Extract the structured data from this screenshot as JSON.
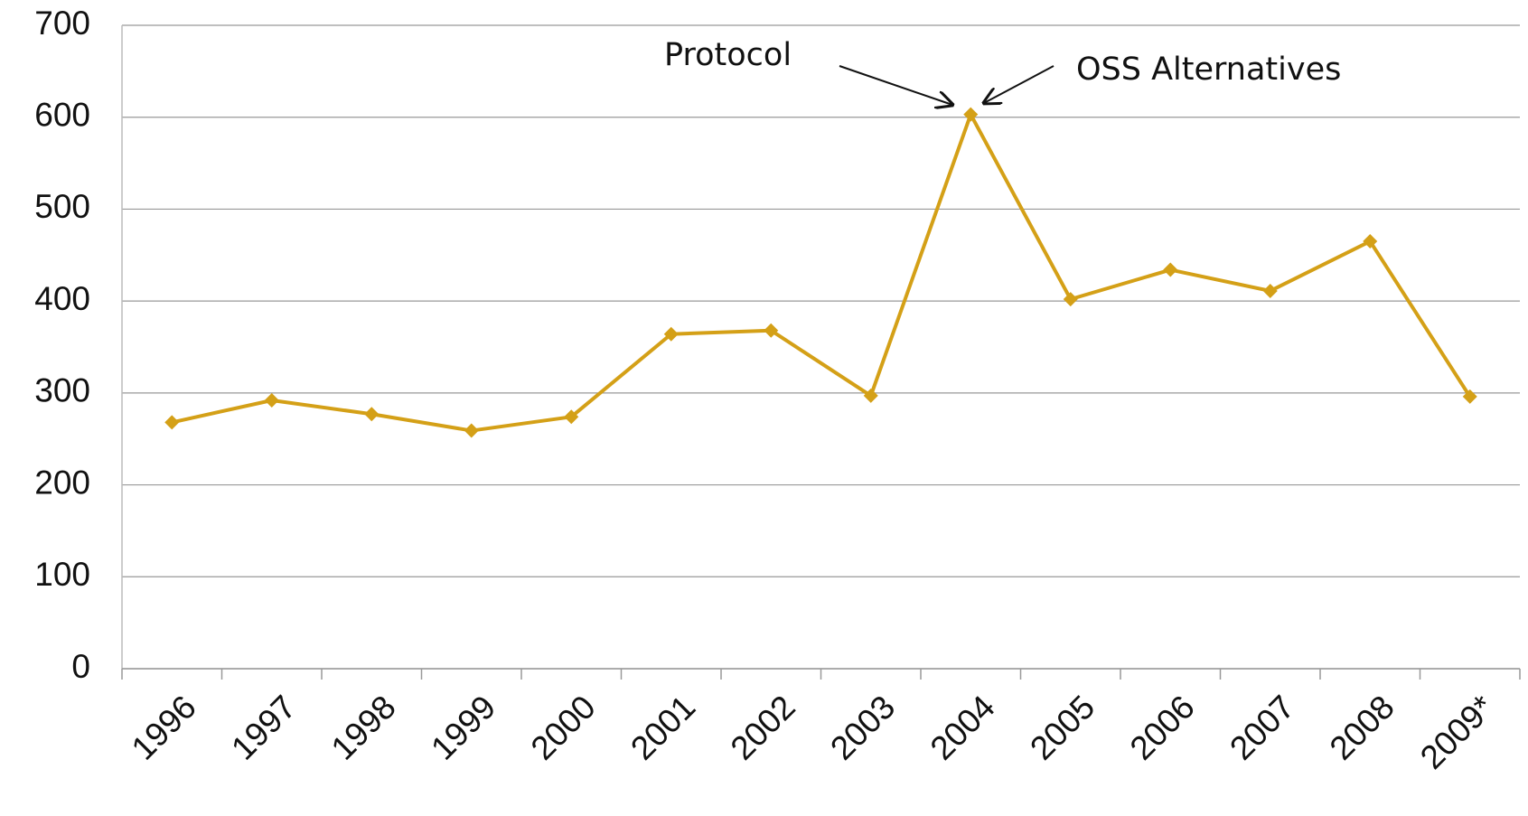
{
  "chart_data": {
    "type": "line",
    "categories": [
      "1996",
      "1997",
      "1998",
      "1999",
      "2000",
      "2001",
      "2002",
      "2003",
      "2004",
      "2005",
      "2006",
      "2007",
      "2008",
      "2009*"
    ],
    "series": [
      {
        "color": "#d4a017",
        "values": [
          268,
          292,
          277,
          259,
          274,
          364,
          368,
          297,
          603,
          402,
          434,
          411,
          465,
          296
        ]
      }
    ],
    "ylim": [
      0,
      700
    ],
    "yticks": [
      0,
      100,
      200,
      300,
      400,
      500,
      600,
      700
    ],
    "grid": true,
    "annotations": [
      "Protocol",
      "OSS Alternatives"
    ]
  }
}
